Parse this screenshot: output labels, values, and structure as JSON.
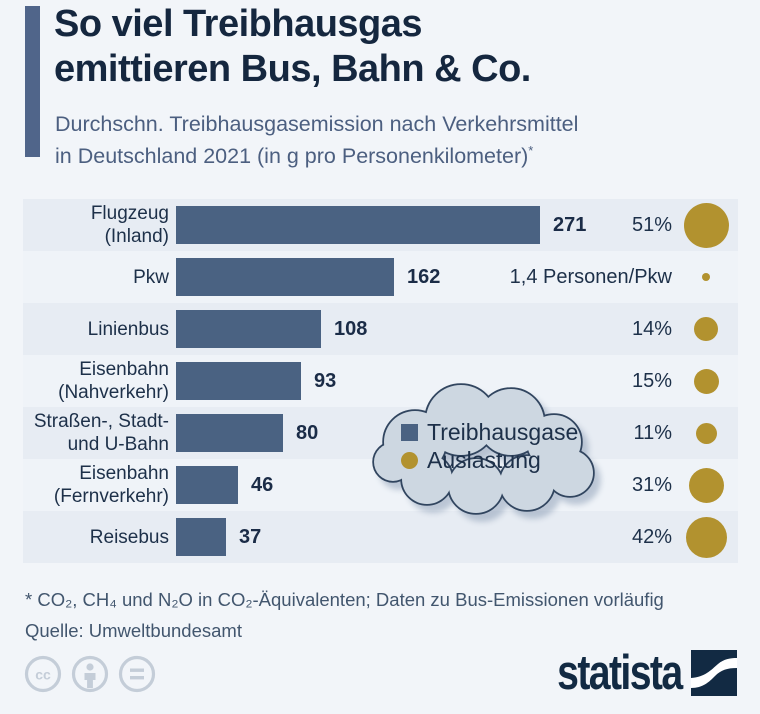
{
  "header": {
    "title_line1": "So viel Treibhausgas",
    "title_line2": "emittieren Bus, Bahn & Co.",
    "subtitle_line1": "Durchschn. Treibhausgasemission nach Verkehrsmittel",
    "subtitle_line2": "in Deutschland 2021 (in g pro Personenkilometer)",
    "footnote_marker": "*"
  },
  "chart_data": {
    "type": "bar",
    "orientation": "horizontal",
    "title": "So viel Treibhausgas emittieren Bus, Bahn & Co.",
    "subtitle": "Durchschn. Treibhausgasemission nach Verkehrsmittel in Deutschland 2021 (in g pro Personenkilometer)*",
    "unit": "g pro Personenkilometer",
    "xlim": [
      0,
      271
    ],
    "categories": [
      "Flugzeug (Inland)",
      "Pkw",
      "Linienbus",
      "Eisenbahn (Nahverkehr)",
      "Straßen-, Stadt- und U-Bahn",
      "Eisenbahn (Fernverkehr)",
      "Reisebus"
    ],
    "series": [
      {
        "name": "Treibhausgase",
        "values": [
          271,
          162,
          108,
          93,
          80,
          46,
          37
        ]
      },
      {
        "name": "Auslastung",
        "values_percent": [
          51,
          null,
          14,
          15,
          11,
          31,
          42
        ],
        "labels": [
          "51%",
          "1,4 Personen/Pkw",
          "14%",
          "15%",
          "11%",
          "31%",
          "42%"
        ]
      }
    ],
    "rows": [
      {
        "label_lines": [
          "Flugzeug",
          "(Inland)"
        ],
        "value": 271,
        "aus_label": "51%",
        "percent": 51
      },
      {
        "label_lines": [
          "Pkw"
        ],
        "value": 162,
        "aus_label": "1,4 Personen/Pkw",
        "percent": null
      },
      {
        "label_lines": [
          "Linienbus"
        ],
        "value": 108,
        "aus_label": "14%",
        "percent": 14
      },
      {
        "label_lines": [
          "Eisenbahn",
          "(Nahverkehr)"
        ],
        "value": 93,
        "aus_label": "15%",
        "percent": 15
      },
      {
        "label_lines": [
          "Straßen-, Stadt-",
          "und U-Bahn"
        ],
        "value": 80,
        "aus_label": "11%",
        "percent": 11
      },
      {
        "label_lines": [
          "Eisenbahn",
          "(Fernverkehr)"
        ],
        "value": 46,
        "aus_label": "31%",
        "percent": 31
      },
      {
        "label_lines": [
          "Reisebus"
        ],
        "value": 37,
        "aus_label": "42%",
        "percent": 42
      }
    ],
    "legend_position": "center-right-cloud",
    "grid": false
  },
  "legend": {
    "items": [
      {
        "label": "Treibhausgase",
        "marker": "square",
        "color": "#4a6282"
      },
      {
        "label": "Auslastung",
        "marker": "circle",
        "color": "#b2922f"
      }
    ]
  },
  "footer": {
    "footnote_line1": "* CO₂, CH₄ und N₂O in CO₂-Äquivalenten; Daten zu Bus-Emissionen vorläufig",
    "footnote_line2": "Quelle: Umweltbundesamt",
    "brand": "statista",
    "license_icons": [
      "cc-icon",
      "attribution-icon",
      "nd-icon"
    ]
  },
  "colors": {
    "page_bg": "#f2f5f9",
    "row_dark": "#e7ecf3",
    "row_light": "#eff3f8",
    "bar": "#4a6282",
    "accent_bar": "#50658a",
    "title": "#15273f",
    "subtitle": "#4c5f80",
    "gold": "#b2922f",
    "cloud_fill": "#cdd7e1",
    "cloud_stroke": "#31455f",
    "brand_navy": "#122a43",
    "license_gray": "#c4cdd8"
  }
}
